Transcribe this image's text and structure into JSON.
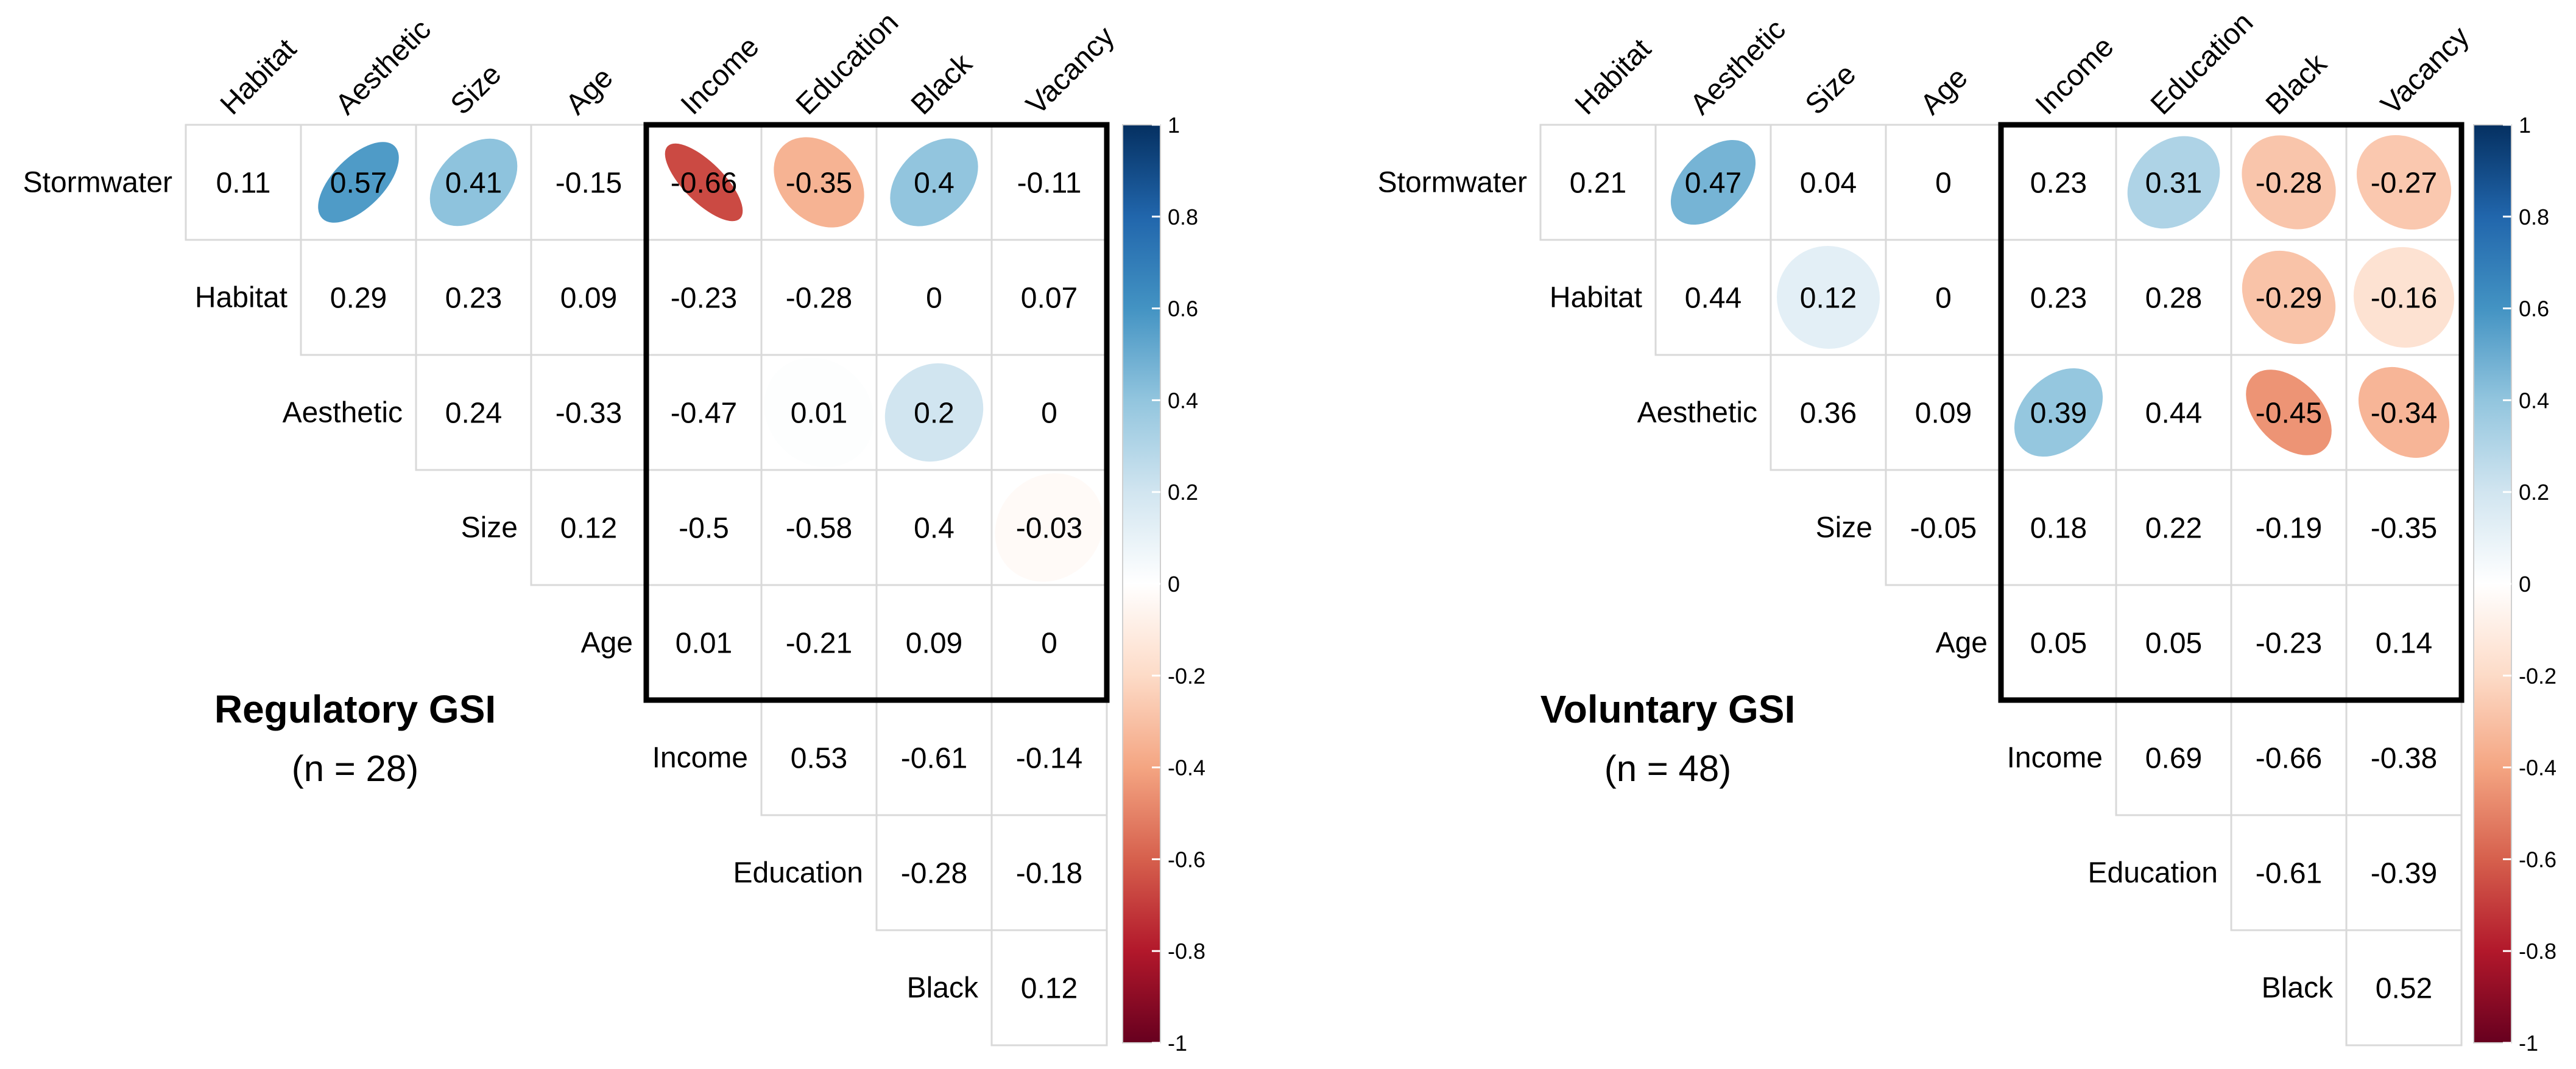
{
  "chart_data": [
    {
      "type": "heatmap",
      "subtype": "correlation-ellipse-upper-triangle",
      "title": "Regulatory GSI",
      "subtitle": "(n = 28)",
      "column_labels": [
        "Habitat",
        "Aesthetic",
        "Size",
        "Age",
        "Income",
        "Education",
        "Black",
        "Vacancy"
      ],
      "row_labels": [
        "Stormwater",
        "Habitat",
        "Aesthetic",
        "Size",
        "Age",
        "Income",
        "Education",
        "Black"
      ],
      "values": [
        [
          0.11,
          0.57,
          0.41,
          -0.15,
          -0.66,
          -0.35,
          0.4,
          -0.11
        ],
        [
          0.29,
          0.23,
          0.09,
          -0.23,
          -0.28,
          0,
          0.07
        ],
        [
          0.24,
          -0.33,
          -0.47,
          0.01,
          0.2,
          0
        ],
        [
          0.12,
          -0.5,
          -0.58,
          0.4,
          -0.03
        ],
        [
          0.01,
          -0.21,
          0.09,
          0
        ],
        [
          0.53,
          -0.61,
          -0.14
        ],
        [
          -0.28,
          -0.18
        ],
        [
          0.12
        ]
      ],
      "ellipse_cells": [
        [
          0,
          1
        ],
        [
          0,
          2
        ],
        [
          0,
          4
        ],
        [
          0,
          5
        ],
        [
          0,
          6
        ],
        [
          2,
          3
        ],
        [
          2,
          4
        ],
        [
          3,
          4
        ],
        [
          3,
          5
        ],
        [
          3,
          6
        ],
        [
          5,
          5
        ],
        [
          5,
          6
        ]
      ],
      "highlight_box": {
        "rows": [
          "Stormwater",
          "Age"
        ],
        "cols": [
          "Income",
          "Vacancy"
        ]
      },
      "colorbar": {
        "range": [
          -1,
          1
        ],
        "ticks": [
          "1",
          "0.8",
          "0.6",
          "0.4",
          "0.2",
          "0",
          "-0.2",
          "-0.4",
          "-0.6",
          "-0.8",
          "-1"
        ]
      }
    },
    {
      "type": "heatmap",
      "subtype": "correlation-ellipse-upper-triangle",
      "title": "Voluntary GSI",
      "subtitle": "(n = 48)",
      "column_labels": [
        "Habitat",
        "Aesthetic",
        "Size",
        "Age",
        "Income",
        "Education",
        "Black",
        "Vacancy"
      ],
      "row_labels": [
        "Stormwater",
        "Habitat",
        "Aesthetic",
        "Size",
        "Age",
        "Income",
        "Education",
        "Black"
      ],
      "values": [
        [
          0.21,
          0.47,
          0.04,
          0,
          0.23,
          0.31,
          -0.28,
          -0.27
        ],
        [
          0.44,
          0.12,
          0,
          0.23,
          0.28,
          -0.29,
          -0.16
        ],
        [
          0.36,
          0.09,
          0.39,
          0.44,
          -0.45,
          -0.34
        ],
        [
          -0.05,
          0.18,
          0.22,
          -0.19,
          -0.35
        ],
        [
          0.05,
          0.05,
          -0.23,
          0.14
        ],
        [
          0.69,
          -0.66,
          -0.38
        ],
        [
          -0.61,
          -0.39
        ],
        [
          0.52
        ]
      ],
      "ellipse_cells": [
        [
          0,
          1
        ],
        [
          0,
          5
        ],
        [
          0,
          6
        ],
        [
          0,
          7
        ],
        [
          1,
          1
        ],
        [
          1,
          5
        ],
        [
          1,
          6
        ],
        [
          2,
          2
        ],
        [
          2,
          4
        ],
        [
          2,
          5
        ],
        [
          2,
          6
        ],
        [
          2,
          7
        ],
        [
          3,
          7
        ],
        [
          5,
          5
        ],
        [
          5,
          6
        ],
        [
          5,
          7
        ],
        [
          6,
          6
        ],
        [
          6,
          7
        ],
        [
          7,
          7
        ]
      ],
      "highlight_box": {
        "rows": [
          "Stormwater",
          "Age"
        ],
        "cols": [
          "Income",
          "Vacancy"
        ]
      },
      "colorbar": {
        "range": [
          -1,
          1
        ],
        "ticks": [
          "1",
          "0.8",
          "0.6",
          "0.4",
          "0.2",
          "0",
          "-0.2",
          "-0.4",
          "-0.6",
          "-0.8",
          "-1"
        ]
      }
    }
  ]
}
